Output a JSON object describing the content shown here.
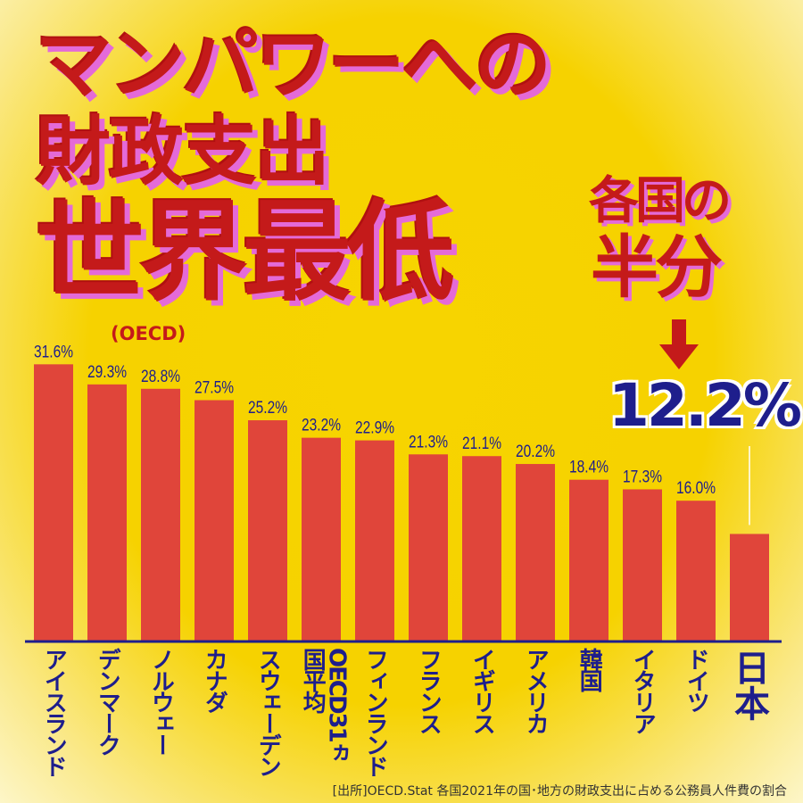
{
  "title": {
    "line1": "マンパワーへの",
    "line2": "財政支出",
    "line3": "世界最低",
    "note": "(OECD)"
  },
  "callout": {
    "line1": "各国の",
    "line2": "半分",
    "value": "12.2%"
  },
  "source": "[出所]OECD.Stat 各国2021年の国･地方の財政支出に占める公務員人件費の割合",
  "colors": {
    "bar": "#e0453a",
    "text": "#1e1e8c",
    "title": "#c41a1a"
  },
  "chart_data": {
    "type": "bar",
    "title": "マンパワーへの財政支出 世界最低 (OECD)",
    "categories": [
      "アイスランド",
      "デンマーク",
      "ノルウェー",
      "カナダ",
      "スウェーデン",
      "OECD31ヵ国平均",
      "フィンランド",
      "フランス",
      "イギリス",
      "アメリカ",
      "韓国",
      "イタリア",
      "ドイツ",
      "日本"
    ],
    "values": [
      31.6,
      29.3,
      28.8,
      27.5,
      25.2,
      23.2,
      22.9,
      21.3,
      21.1,
      20.2,
      18.4,
      17.3,
      16.0,
      12.2
    ],
    "labels": [
      "31.6%",
      "29.3%",
      "28.8%",
      "27.5%",
      "25.2%",
      "23.2%",
      "22.9%",
      "21.3%",
      "21.1%",
      "20.2%",
      "18.4%",
      "17.3%",
      "16.0%",
      ""
    ],
    "ylabel": "",
    "xlabel": "",
    "ylim": [
      0,
      32
    ]
  }
}
